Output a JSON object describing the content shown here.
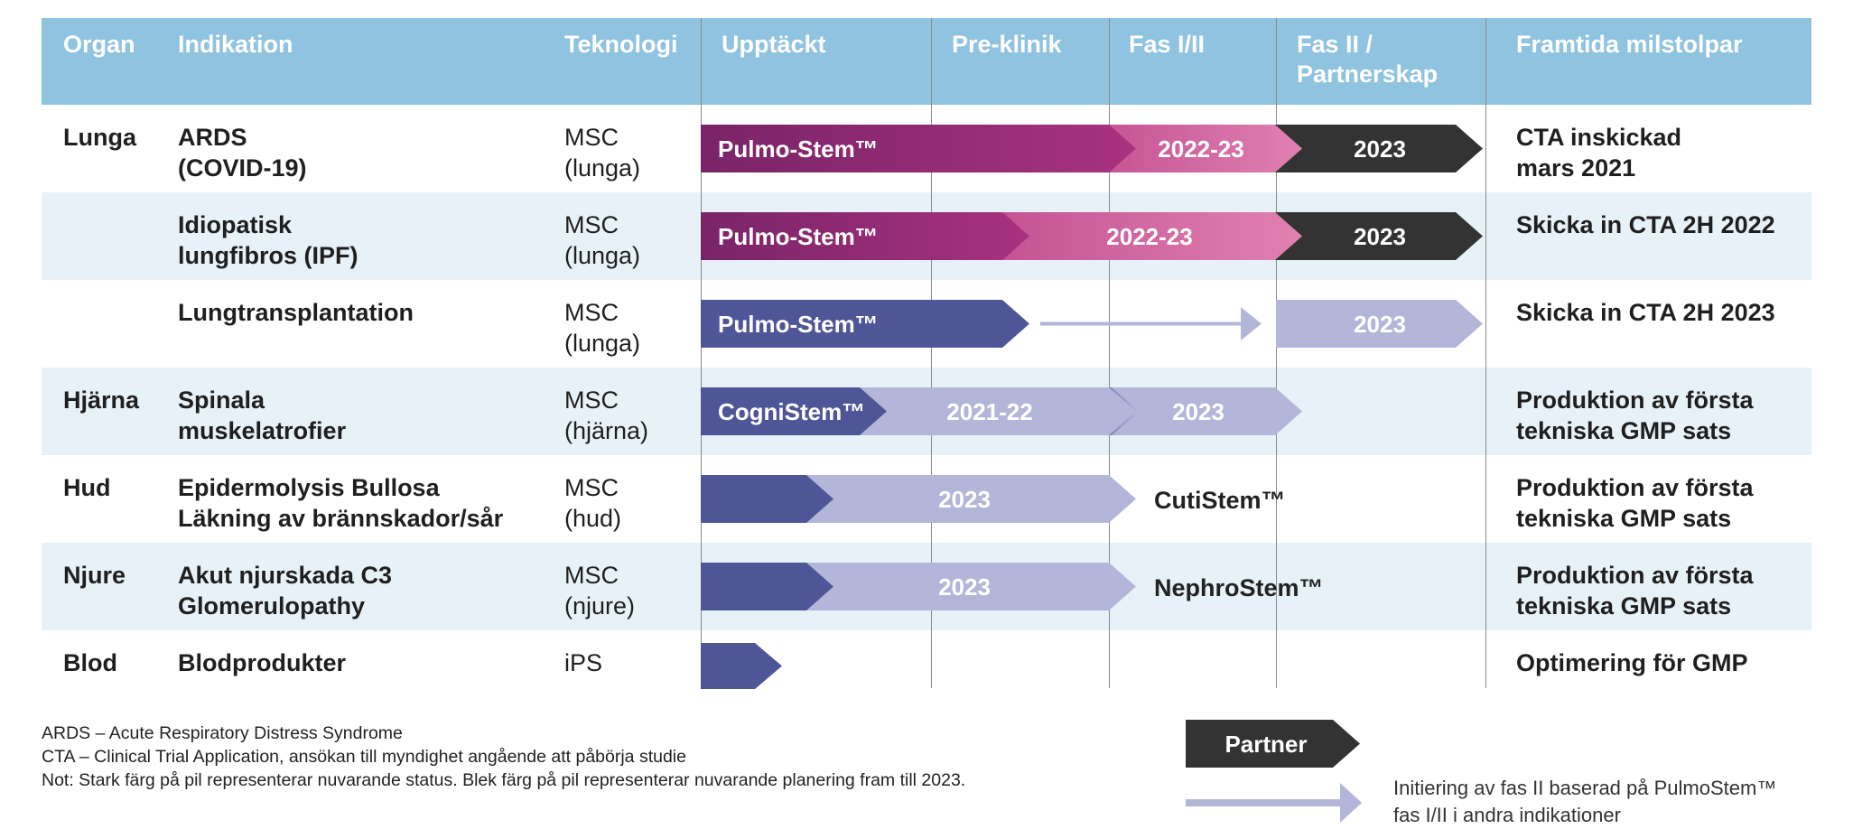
{
  "colors": {
    "header_bg": "#8fc3e0",
    "row_shade": "#e7f2f8",
    "magenta_dark": "#7e2467",
    "magenta_mid": "#9b2d7a",
    "pink": "#d96ea3",
    "black": "#333333",
    "indigo": "#4f5697",
    "lavender": "#b4b6d9"
  },
  "header": {
    "organ": "Organ",
    "indication": "Indikation",
    "technology": "Teknologi",
    "discovery": "Upptäckt",
    "preclinic": "Pre-klinik",
    "phase12": "Fas I/II",
    "phase2_line1": "Fas II /",
    "phase2_line2": "Partnerskap",
    "milestones": "Framtida milstolpar"
  },
  "rows": [
    {
      "organ": "Lunga",
      "indication": [
        "ARDS",
        "(COVID-19)"
      ],
      "technology": [
        "MSC",
        "(lunga)"
      ],
      "milestone": [
        "CTA inskickad",
        "mars 2021"
      ],
      "labels": [
        "Pulmo-Stem™",
        "2022-23",
        "2023"
      ]
    },
    {
      "organ": "",
      "indication": [
        "Idiopatisk",
        "lungfibros (IPF)"
      ],
      "technology": [
        "MSC",
        "(lunga)"
      ],
      "milestone": [
        "Skicka in CTA 2H 2022",
        ""
      ],
      "labels": [
        "Pulmo-Stem™",
        "2022-23",
        "2023"
      ]
    },
    {
      "organ": "",
      "indication": [
        "Lungtransplantation",
        ""
      ],
      "technology": [
        "MSC",
        "(lunga)"
      ],
      "milestone": [
        "Skicka in CTA 2H 2023",
        ""
      ],
      "labels": [
        "Pulmo-Stem™",
        "2023"
      ]
    },
    {
      "organ": "Hjärna",
      "indication": [
        "Spinala",
        "muskelatrofier"
      ],
      "technology": [
        "MSC",
        "(hjärna)"
      ],
      "milestone": [
        "Produktion av första",
        "tekniska GMP sats"
      ],
      "labels": [
        "CogniStem™",
        "2021-22",
        "2023"
      ]
    },
    {
      "organ": "Hud",
      "indication": [
        "Epidermolysis Bullosa",
        "Läkning av brännskador/sår"
      ],
      "technology": [
        "MSC",
        "(hud)"
      ],
      "milestone": [
        "Produktion av första",
        "tekniska GMP sats"
      ],
      "labels": [
        "2023",
        "CutiStem™"
      ]
    },
    {
      "organ": "Njure",
      "indication": [
        "Akut njurskada C3",
        "Glomerulopathy"
      ],
      "technology": [
        "MSC",
        "(njure)"
      ],
      "milestone": [
        "Produktion av första",
        "tekniska GMP sats"
      ],
      "labels": [
        "2023",
        "NephroStem™"
      ]
    },
    {
      "organ": "Blod",
      "indication": [
        "Blodprodukter",
        ""
      ],
      "technology": [
        "iPS",
        ""
      ],
      "milestone": [
        "Optimering för GMP",
        ""
      ],
      "labels": []
    }
  ],
  "footnotes": [
    "ARDS – Acute Respiratory Distress Syndrome",
    "CTA – Clinical Trial Application, ansökan till myndighet angående att påbörja studie",
    "Not: Stark färg på pil representerar nuvarande status. Blek färg på pil representerar nuvarande planering fram till 2023."
  ],
  "legend": {
    "partner_label": "Partner",
    "arrow_text_line1": "Initiering av fas II baserad på PulmoStem™",
    "arrow_text_line2": "fas I/II i andra indikationer"
  }
}
